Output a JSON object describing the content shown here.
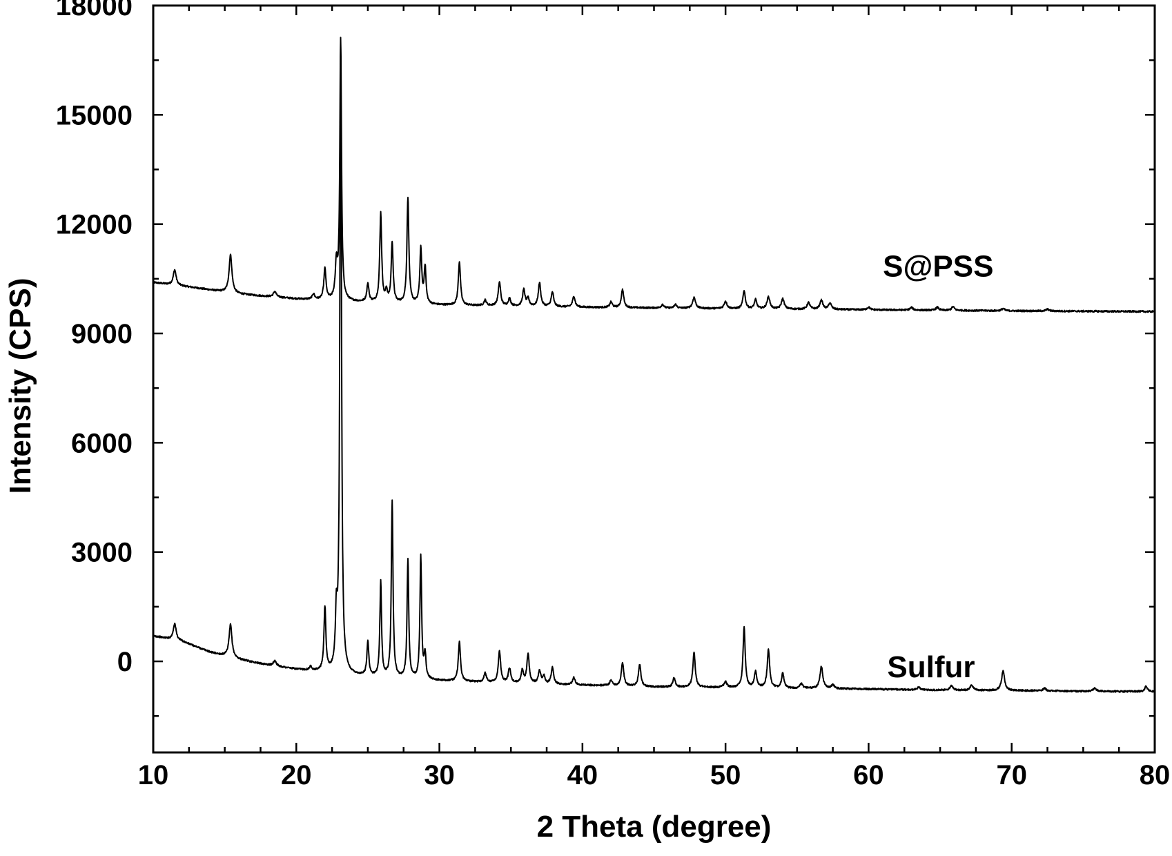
{
  "chart_data": {
    "type": "line",
    "xlabel": "2 Theta (degree)",
    "ylabel": "Intensity (CPS)",
    "xlim": [
      10,
      80
    ],
    "ylim": [
      -2500,
      18000
    ],
    "x_ticks": [
      10,
      20,
      30,
      40,
      50,
      60,
      70,
      80
    ],
    "y_ticks": [
      0,
      3000,
      6000,
      9000,
      12000,
      15000,
      18000
    ],
    "x_minor_step": 2.5,
    "y_minor_step": 1500,
    "grid": false,
    "legend": "none",
    "line_color": "#000000",
    "series": [
      {
        "name": "S@PSS",
        "label_at": [
          61,
          10850
        ],
        "baseline": [
          [
            10,
            10400
          ],
          [
            13,
            10250
          ],
          [
            16,
            10080
          ],
          [
            20,
            9950
          ],
          [
            25,
            9850
          ],
          [
            30,
            9780
          ],
          [
            40,
            9720
          ],
          [
            50,
            9680
          ],
          [
            60,
            9650
          ],
          [
            70,
            9620
          ],
          [
            80,
            9600
          ]
        ],
        "peaks": [
          [
            11.5,
            420,
            0.12
          ],
          [
            15.4,
            1050,
            0.12
          ],
          [
            18.5,
            150,
            0.12
          ],
          [
            21.2,
            150,
            0.1
          ],
          [
            22.0,
            850,
            0.09
          ],
          [
            22.8,
            950,
            0.09
          ],
          [
            23.1,
            7150,
            0.07
          ],
          [
            25.0,
            500,
            0.09
          ],
          [
            25.9,
            2450,
            0.08
          ],
          [
            26.3,
            300,
            0.08
          ],
          [
            26.7,
            1650,
            0.08
          ],
          [
            27.8,
            2900,
            0.08
          ],
          [
            28.7,
            1500,
            0.08
          ],
          [
            29.0,
            1000,
            0.08
          ],
          [
            31.4,
            1200,
            0.09
          ],
          [
            33.2,
            150,
            0.1
          ],
          [
            34.2,
            650,
            0.1
          ],
          [
            34.9,
            200,
            0.1
          ],
          [
            35.9,
            450,
            0.1
          ],
          [
            36.2,
            200,
            0.1
          ],
          [
            37.0,
            650,
            0.1
          ],
          [
            37.9,
            400,
            0.1
          ],
          [
            39.4,
            300,
            0.1
          ],
          [
            42.0,
            150,
            0.1
          ],
          [
            42.8,
            500,
            0.1
          ],
          [
            45.6,
            100,
            0.1
          ],
          [
            46.5,
            100,
            0.1
          ],
          [
            47.8,
            300,
            0.12
          ],
          [
            50.0,
            200,
            0.12
          ],
          [
            51.3,
            500,
            0.1
          ],
          [
            52.1,
            250,
            0.1
          ],
          [
            53.0,
            330,
            0.12
          ],
          [
            54.0,
            280,
            0.12
          ],
          [
            55.8,
            180,
            0.12
          ],
          [
            56.7,
            250,
            0.12
          ],
          [
            57.3,
            170,
            0.12
          ],
          [
            60.0,
            70,
            0.12
          ],
          [
            63.0,
            70,
            0.12
          ],
          [
            64.8,
            80,
            0.12
          ],
          [
            65.9,
            100,
            0.12
          ],
          [
            69.4,
            60,
            0.12
          ],
          [
            72.5,
            50,
            0.12
          ]
        ]
      },
      {
        "name": "Sulfur",
        "label_at": [
          61.3,
          -150
        ],
        "baseline": [
          [
            10,
            700
          ],
          [
            12,
            550
          ],
          [
            14,
            250
          ],
          [
            16,
            50
          ],
          [
            18,
            -100
          ],
          [
            20,
            -220
          ],
          [
            25,
            -420
          ],
          [
            30,
            -530
          ],
          [
            35,
            -600
          ],
          [
            40,
            -650
          ],
          [
            45,
            -700
          ],
          [
            50,
            -720
          ],
          [
            55,
            -740
          ],
          [
            60,
            -760
          ],
          [
            65,
            -790
          ],
          [
            70,
            -800
          ],
          [
            75,
            -820
          ],
          [
            80,
            -830
          ]
        ],
        "peaks": [
          [
            11.5,
            450,
            0.12
          ],
          [
            15.4,
            900,
            0.12
          ],
          [
            18.5,
            150,
            0.12
          ],
          [
            21.0,
            100,
            0.1
          ],
          [
            22.0,
            1750,
            0.08
          ],
          [
            22.8,
            1400,
            0.08
          ],
          [
            23.1,
            17200,
            0.07
          ],
          [
            25.0,
            950,
            0.08
          ],
          [
            25.9,
            2600,
            0.07
          ],
          [
            26.7,
            4850,
            0.07
          ],
          [
            27.8,
            3250,
            0.07
          ],
          [
            28.7,
            3350,
            0.07
          ],
          [
            29.0,
            650,
            0.08
          ],
          [
            31.4,
            1100,
            0.09
          ],
          [
            33.2,
            250,
            0.1
          ],
          [
            34.2,
            850,
            0.1
          ],
          [
            34.9,
            400,
            0.1
          ],
          [
            35.8,
            350,
            0.1
          ],
          [
            36.2,
            800,
            0.1
          ],
          [
            37.0,
            350,
            0.1
          ],
          [
            37.3,
            200,
            0.1
          ],
          [
            37.9,
            450,
            0.1
          ],
          [
            39.4,
            200,
            0.1
          ],
          [
            42.0,
            150,
            0.1
          ],
          [
            42.8,
            650,
            0.1
          ],
          [
            44.0,
            600,
            0.1
          ],
          [
            46.4,
            250,
            0.1
          ],
          [
            47.8,
            950,
            0.1
          ],
          [
            50.0,
            150,
            0.12
          ],
          [
            51.3,
            1650,
            0.09
          ],
          [
            52.1,
            450,
            0.1
          ],
          [
            53.0,
            1050,
            0.1
          ],
          [
            54.0,
            400,
            0.1
          ],
          [
            55.3,
            120,
            0.12
          ],
          [
            56.7,
            600,
            0.12
          ],
          [
            57.5,
            100,
            0.12
          ],
          [
            63.5,
            70,
            0.12
          ],
          [
            65.8,
            130,
            0.12
          ],
          [
            67.2,
            150,
            0.12
          ],
          [
            69.4,
            550,
            0.12
          ],
          [
            72.3,
            70,
            0.12
          ],
          [
            75.8,
            90,
            0.12
          ],
          [
            79.4,
            150,
            0.1
          ]
        ]
      }
    ]
  }
}
